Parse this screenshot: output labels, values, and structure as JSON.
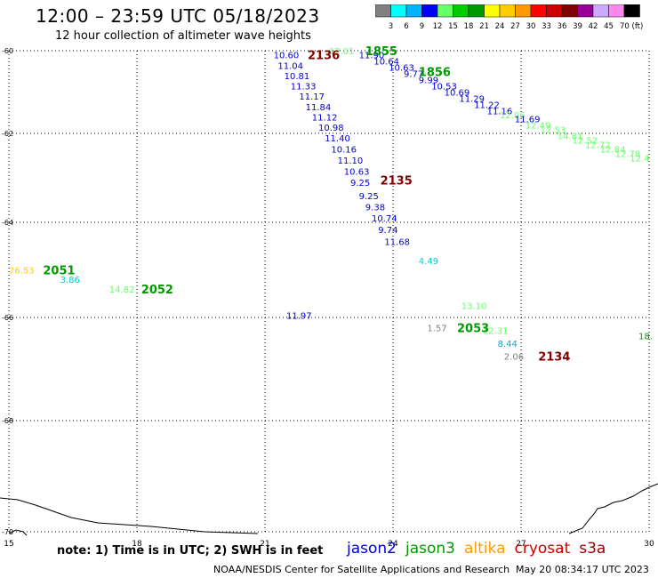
{
  "header": {
    "title": "12:00 – 23:59 UTC 05/18/2023",
    "subtitle": "12 hour collection of altimeter wave heights"
  },
  "colorbar": {
    "labels": [
      "3",
      "6",
      "9",
      "12",
      "15",
      "18",
      "21",
      "24",
      "27",
      "30",
      "33",
      "36",
      "39",
      "42",
      "45",
      "70 (ft)"
    ],
    "colors": [
      "#808080",
      "#00ffff",
      "#00b4ff",
      "#0000ff",
      "#66ff66",
      "#00cc00",
      "#009900",
      "#ffff00",
      "#ffcc00",
      "#ff9900",
      "#ff0000",
      "#cc0000",
      "#800000",
      "#990099",
      "#ccaaff",
      "#ff88ee",
      "#000000"
    ]
  },
  "axes": {
    "lat_labels": [
      "-60",
      "-62",
      "-64",
      "-66",
      "-68",
      "-70"
    ],
    "lon_labels": [
      "15",
      "18",
      "21",
      "24",
      "27",
      "30"
    ]
  },
  "observations": [
    {
      "t": "10.60",
      "lat": -60.1,
      "lon": 21.2,
      "c": "#0000cc"
    },
    {
      "t": "11.04",
      "lat": -60.35,
      "lon": 21.3,
      "c": "#0000cc"
    },
    {
      "t": "10.81",
      "lat": -60.6,
      "lon": 21.45,
      "c": "#0000cc"
    },
    {
      "t": "11.33",
      "lat": -60.85,
      "lon": 21.6,
      "c": "#0000cc"
    },
    {
      "t": "11.17",
      "lat": -61.1,
      "lon": 21.8,
      "c": "#0000cc"
    },
    {
      "t": "11.84",
      "lat": -61.35,
      "lon": 21.95,
      "c": "#0000cc"
    },
    {
      "t": "11.12",
      "lat": -61.6,
      "lon": 22.1,
      "c": "#0000cc"
    },
    {
      "t": "10.98",
      "lat": -61.85,
      "lon": 22.25,
      "c": "#0000cc"
    },
    {
      "t": "11.40",
      "lat": -62.1,
      "lon": 22.4,
      "c": "#0000cc"
    },
    {
      "t": "10.16",
      "lat": -62.35,
      "lon": 22.55,
      "c": "#0000cc"
    },
    {
      "t": "11.10",
      "lat": -62.6,
      "lon": 22.7,
      "c": "#0000cc"
    },
    {
      "t": "10.63",
      "lat": -62.85,
      "lon": 22.85,
      "c": "#0000cc"
    },
    {
      "t": "9.25",
      "lat": -63.1,
      "lon": 23.0,
      "c": "#0000cc"
    },
    {
      "t": "9.25",
      "lat": -63.4,
      "lon": 23.2,
      "c": "#0000cc"
    },
    {
      "t": "9.38",
      "lat": -63.65,
      "lon": 23.35,
      "c": "#0000cc"
    },
    {
      "t": "10.74",
      "lat": -63.9,
      "lon": 23.5,
      "c": "#0000cc"
    },
    {
      "t": "9.74",
      "lat": -64.15,
      "lon": 23.65,
      "c": "#0000cc"
    },
    {
      "t": "11.68",
      "lat": -64.4,
      "lon": 23.8,
      "c": "#0000cc"
    },
    {
      "t": "4.49",
      "lat": -64.8,
      "lon": 24.6,
      "c": "#00cccc"
    },
    {
      "t": "12.01",
      "lat": -60.0,
      "lon": 22.5,
      "c": "#66ff66"
    },
    {
      "t": "11.90",
      "lat": -60.1,
      "lon": 23.2,
      "c": "#0000cc"
    },
    {
      "t": "10.64",
      "lat": -60.25,
      "lon": 23.55,
      "c": "#0000cc"
    },
    {
      "t": "10.63",
      "lat": -60.4,
      "lon": 23.9,
      "c": "#0000cc"
    },
    {
      "t": "9.77",
      "lat": -60.55,
      "lon": 24.25,
      "c": "#0000cc"
    },
    {
      "t": "9.99",
      "lat": -60.7,
      "lon": 24.6,
      "c": "#0000cc"
    },
    {
      "t": "10.53",
      "lat": -60.85,
      "lon": 24.9,
      "c": "#0000cc"
    },
    {
      "t": "10.69",
      "lat": -61.0,
      "lon": 25.2,
      "c": "#0000cc"
    },
    {
      "t": "11.29",
      "lat": -61.15,
      "lon": 25.55,
      "c": "#0000cc"
    },
    {
      "t": "11.22",
      "lat": -61.3,
      "lon": 25.9,
      "c": "#0000cc"
    },
    {
      "t": "11.16",
      "lat": -61.45,
      "lon": 26.2,
      "c": "#0000cc"
    },
    {
      "t": "12.06",
      "lat": -61.55,
      "lon": 26.5,
      "c": "#66ff66"
    },
    {
      "t": "11.69",
      "lat": -61.65,
      "lon": 26.85,
      "c": "#0000cc"
    },
    {
      "t": "12.49",
      "lat": -61.8,
      "lon": 27.1,
      "c": "#66ff66"
    },
    {
      "t": "12.53",
      "lat": -61.9,
      "lon": 27.45,
      "c": "#66ff66"
    },
    {
      "t": "14.81",
      "lat": -62.05,
      "lon": 27.85,
      "c": "#66ff66"
    },
    {
      "t": "12.52",
      "lat": -62.15,
      "lon": 28.2,
      "c": "#66ff66"
    },
    {
      "t": "12.72",
      "lat": -62.25,
      "lon": 28.5,
      "c": "#66ff66"
    },
    {
      "t": "12.84",
      "lat": -62.35,
      "lon": 28.85,
      "c": "#66ff66"
    },
    {
      "t": "12.78",
      "lat": -62.45,
      "lon": 29.2,
      "c": "#66ff66"
    },
    {
      "t": "12.4",
      "lat": -62.55,
      "lon": 29.55,
      "c": "#66ff66"
    },
    {
      "t": "26.53",
      "lat": -65.0,
      "lon": 15.0,
      "c": "#ffcc00"
    },
    {
      "t": "3.86",
      "lat": -65.2,
      "lon": 16.2,
      "c": "#00cccc"
    },
    {
      "t": "14.82",
      "lat": -65.4,
      "lon": 17.35,
      "c": "#66ff66"
    },
    {
      "t": "11.97",
      "lat": -65.95,
      "lon": 21.5,
      "c": "#0000cc"
    },
    {
      "t": "13.10",
      "lat": -65.75,
      "lon": 25.6,
      "c": "#66ff66"
    },
    {
      "t": "1.57",
      "lat": -66.2,
      "lon": 24.8,
      "c": "#808080"
    },
    {
      "t": "12.31",
      "lat": -66.25,
      "lon": 26.1,
      "c": "#66ff66"
    },
    {
      "t": "8.44",
      "lat": -66.5,
      "lon": 26.45,
      "c": "#00aacc"
    },
    {
      "t": "2.06",
      "lat": -66.75,
      "lon": 26.6,
      "c": "#808080"
    },
    {
      "t": "18.",
      "lat": -66.35,
      "lon": 29.75,
      "c": "#009900"
    }
  ],
  "pass_labels": [
    {
      "t": "2136",
      "lat": -60.1,
      "lon": 22.0,
      "c": "#800000"
    },
    {
      "t": "1855",
      "lat": -59.95,
      "lon": 23.35,
      "c": "#009900"
    },
    {
      "t": "1856",
      "lat": -60.5,
      "lon": 24.6,
      "c": "#009900"
    },
    {
      "t": "2135",
      "lat": -63.05,
      "lon": 23.7,
      "c": "#800000"
    },
    {
      "t": "2051",
      "lat": -65.0,
      "lon": 15.8,
      "c": "#009900"
    },
    {
      "t": "2052",
      "lat": -65.4,
      "lon": 18.1,
      "c": "#009900"
    },
    {
      "t": "2053",
      "lat": -66.2,
      "lon": 25.5,
      "c": "#009900"
    },
    {
      "t": "2134",
      "lat": -66.75,
      "lon": 27.4,
      "c": "#800000"
    }
  ],
  "footer": {
    "note": "note: 1) Time is in UTC; 2) SWH is in feet",
    "legend": [
      {
        "name": "jason2",
        "color": "#0000cc"
      },
      {
        "name": "jason3",
        "color": "#009900"
      },
      {
        "name": "altika",
        "color": "#ff9900"
      },
      {
        "name": "cryosat",
        "color": "#cc0000"
      },
      {
        "name": "s3a",
        "color": "#990000"
      }
    ],
    "credit": "NOAA/NESDIS Center for Satellite Applications and Research",
    "timestamp": "May 20 08:34:17 UTC 2023"
  }
}
